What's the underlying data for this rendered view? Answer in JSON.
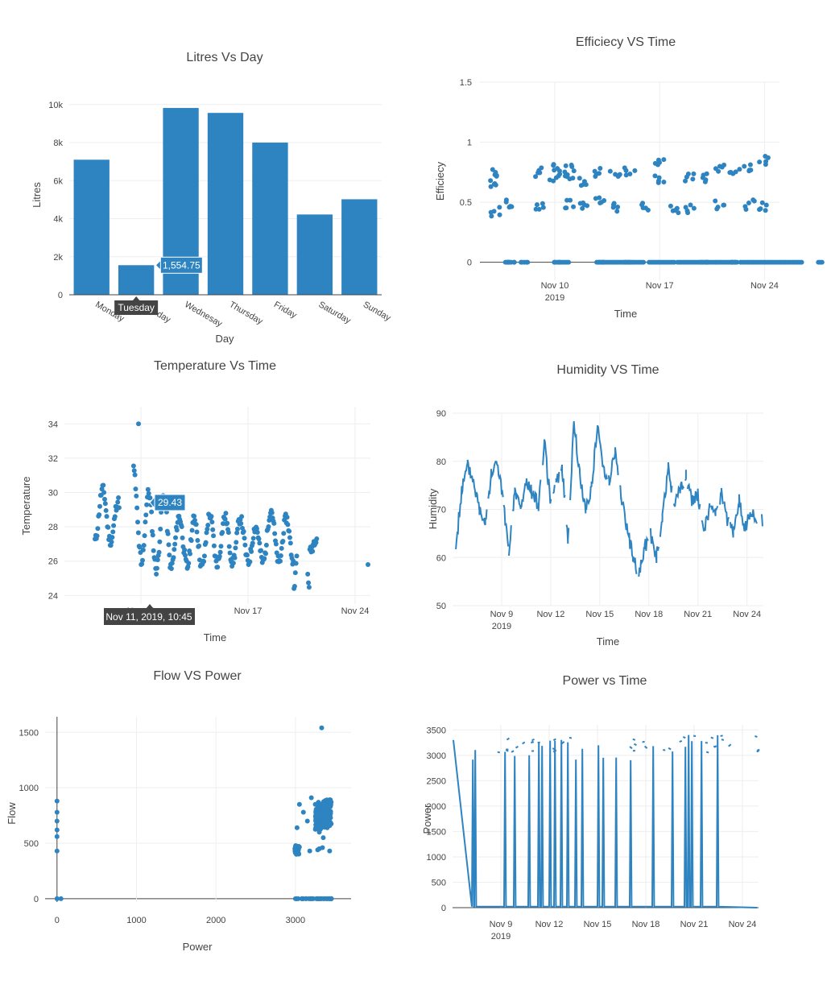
{
  "colors": {
    "series": "#2e83c1",
    "grid": "#eeeeee",
    "axis": "#444444",
    "tooltip_dark": "#444444"
  },
  "chart_data": [
    {
      "id": "litres",
      "type": "bar",
      "title": "Litres Vs Day",
      "xlabel": "Day",
      "ylabel": "Litres",
      "categories": [
        "Monday",
        "Tuesday",
        "Wednesay",
        "Thursday",
        "Friday",
        "Saturday",
        "Sunday"
      ],
      "values": [
        7100,
        1554.75,
        9820,
        9560,
        8000,
        4220,
        5020
      ],
      "ylim": [
        0,
        10500
      ],
      "yticks": [
        0,
        2000,
        4000,
        6000,
        8000,
        10000
      ],
      "ytick_labels": [
        "0",
        "2k",
        "4k",
        "6k",
        "8k",
        "10k"
      ],
      "grid": true,
      "hover": {
        "category": "Tuesday",
        "value_label": "1,554.75"
      }
    },
    {
      "id": "efficiency",
      "type": "scatter",
      "title": "Efficiecy VS Time",
      "xlabel": "Time",
      "ylabel": "Efficiecy",
      "xlim": [
        "2019-11-05",
        "2019-11-25"
      ],
      "ylim": [
        -0.15,
        1.5
      ],
      "xticks": [
        "Nov 10\n2019",
        "Nov 17",
        "Nov 24"
      ],
      "yticks": [
        0,
        0.5,
        1,
        1.5
      ],
      "ytick_labels": [
        "0",
        "0.5",
        "1",
        "1.5"
      ],
      "grid": true,
      "series": [
        {
          "x": [
            "2019-11-06",
            "2019-11-06",
            "2019-11-06",
            "2019-11-07",
            "2019-11-07",
            "2019-11-07",
            "2019-11-08",
            "2019-11-09",
            "2019-11-09",
            "2019-11-10",
            "2019-11-10",
            "2019-11-10",
            "2019-11-11",
            "2019-11-11",
            "2019-11-11",
            "2019-11-12",
            "2019-11-12",
            "2019-11-13",
            "2019-11-13",
            "2019-11-13",
            "2019-11-14",
            "2019-11-14",
            "2019-11-15",
            "2019-11-15",
            "2019-11-16",
            "2019-11-17",
            "2019-11-17",
            "2019-11-18",
            "2019-11-19",
            "2019-11-19",
            "2019-11-20",
            "2019-11-20",
            "2019-11-21",
            "2019-11-21",
            "2019-11-22",
            "2019-11-22",
            "2019-11-23",
            "2019-11-23",
            "2019-11-24",
            "2019-11-24"
          ],
          "y": [
            0.65,
            0.75,
            0.42,
            0.48,
            0.0,
            0.0,
            0.0,
            0.75,
            0.46,
            0.7,
            0.8,
            0.0,
            0.78,
            0.49,
            0.73,
            0.68,
            0.46,
            0.75,
            0.5,
            0.0,
            0.72,
            0.46,
            0.75,
            0.0,
            0.46,
            0.85,
            0.7,
            0.45,
            0.7,
            0.44,
            0.0,
            0.7,
            0.79,
            0.48,
            0.75,
            0.0,
            0.8,
            0.48,
            0.85,
            0.46
          ]
        }
      ]
    },
    {
      "id": "temperature",
      "type": "scatter",
      "title": "Temperature Vs Time",
      "xlabel": "Time",
      "ylabel": "Temperature",
      "xlim": [
        "2019-11-05",
        "2019-11-25"
      ],
      "ylim": [
        23.5,
        35
      ],
      "xticks": [
        "Nov 10",
        "Nov 17",
        "Nov 24"
      ],
      "yticks": [
        24,
        26,
        28,
        30,
        32,
        34
      ],
      "ytick_labels": [
        "24",
        "26",
        "28",
        "30",
        "32",
        "34"
      ],
      "grid": true,
      "daily_max": [
        30.2,
        29.5,
        31.4,
        30.0,
        29.8,
        28.6,
        28.5,
        28.7,
        28.6,
        28.5,
        28.0,
        29.0,
        28.5,
        30.0,
        27.4
      ],
      "daily_min": [
        27.2,
        27.0,
        26.3,
        25.6,
        25.5,
        25.8,
        25.6,
        25.7,
        25.9,
        26.0,
        25.9,
        26.0,
        25.8,
        24.7,
        26.5
      ],
      "outlier": {
        "x": "2019-11-10",
        "y": 34.0
      },
      "hover": {
        "value_label": "29.43",
        "time_label": "Nov 11, 2019, 10:45"
      }
    },
    {
      "id": "humidity",
      "type": "line",
      "title": "Humidity VS Time",
      "xlabel": "Time",
      "ylabel": "Humidity",
      "xlim": [
        "2019-11-06",
        "2019-11-25"
      ],
      "ylim": [
        50,
        90
      ],
      "xticks": [
        "Nov 9\n2019",
        "Nov 12",
        "Nov 15",
        "Nov 18",
        "Nov 21",
        "Nov 24"
      ],
      "yticks": [
        50,
        60,
        70,
        80,
        90
      ],
      "ytick_labels": [
        "50",
        "60",
        "70",
        "80",
        "90"
      ],
      "grid": true,
      "series": [
        {
          "values": [
            62,
            74,
            79,
            76,
            70,
            68,
            77,
            80,
            72,
            60,
            74,
            70,
            76,
            73,
            71,
            84,
            72,
            75,
            79,
            64,
            88,
            77,
            70,
            75,
            87,
            79,
            76,
            82,
            73,
            66,
            60,
            56,
            62,
            65,
            60,
            68,
            79,
            71,
            74,
            77,
            72,
            73,
            66,
            70,
            69,
            73,
            68,
            65,
            72,
            66,
            69,
            68
          ]
        }
      ]
    },
    {
      "id": "flow_power",
      "type": "scatter",
      "title": "Flow VS Power",
      "xlabel": "Power",
      "ylabel": "Flow",
      "xlim": [
        -150,
        3700
      ],
      "ylim": [
        -30,
        1640
      ],
      "xticks": [
        0,
        1000,
        2000,
        3000
      ],
      "xtick_labels": [
        "0",
        "1000",
        "2000",
        "3000"
      ],
      "yticks": [
        0,
        500,
        1000,
        1500
      ],
      "ytick_labels": [
        "0",
        "500",
        "1000",
        "1500"
      ],
      "grid": true,
      "series": [
        {
          "x": [
            0,
            0,
            0,
            0,
            0,
            0,
            0,
            0,
            50,
            3000,
            3010,
            3050,
            3100,
            3150,
            3200,
            3250,
            3300,
            3320,
            3350,
            3380,
            3400,
            3420,
            3450,
            3300,
            3350,
            3400,
            3330,
            3360,
            3410,
            3440,
            3020,
            3180,
            3280,
            3340,
            3390,
            3430,
            3360,
            3310,
            3000,
            3100,
            3200,
            3300,
            3400,
            3450
          ],
          "y": [
            880,
            780,
            700,
            620,
            560,
            430,
            0,
            0,
            0,
            470,
            420,
            850,
            780,
            700,
            910,
            850,
            600,
            650,
            720,
            680,
            760,
            810,
            870,
            450,
            550,
            640,
            1540,
            740,
            790,
            830,
            640,
            430,
            440,
            460,
            700,
            430,
            0,
            0,
            0,
            0,
            0,
            0,
            0,
            0
          ]
        }
      ]
    },
    {
      "id": "power_time",
      "type": "line",
      "title": "Power vs Time",
      "xlabel": "Time",
      "ylabel": "Power",
      "xlim": [
        "2019-11-06",
        "2019-11-25"
      ],
      "ylim": [
        0,
        3600
      ],
      "xticks": [
        "Nov 9\n2019",
        "Nov 12",
        "Nov 15",
        "Nov 18",
        "Nov 21",
        "Nov 24"
      ],
      "yticks": [
        0,
        500,
        1000,
        1500,
        2000,
        2500,
        3000,
        3500
      ],
      "ytick_labels": [
        "0",
        "500",
        "1000",
        "1500",
        "2000",
        "2500",
        "3000",
        "3500"
      ],
      "grid": true,
      "spikes_days_offset": [
        0.2,
        0.35,
        2.2,
        2.8,
        3.7,
        4.3,
        4.5,
        5.0,
        5.3,
        5.7,
        6.1,
        6.6,
        7.0,
        8.0,
        8.3,
        9.1,
        10.0,
        11.4,
        12.6,
        13.4,
        13.6,
        13.8,
        14.4,
        15.4
      ],
      "spike_peak": 3400
    }
  ]
}
